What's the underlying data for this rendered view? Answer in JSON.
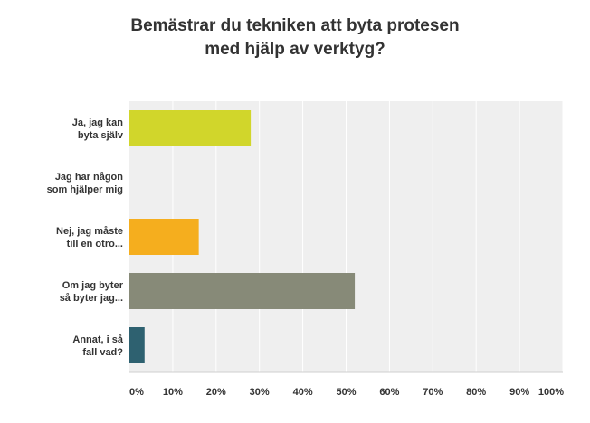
{
  "chart_data": {
    "type": "bar",
    "orientation": "horizontal",
    "title_lines": [
      "Bemästrar du tekniken att byta protesen",
      "med hjälp av verktyg?"
    ],
    "categories": [
      [
        "Ja, jag kan",
        "byta själv"
      ],
      [
        "Jag har någon",
        "som hjälper mig"
      ],
      [
        "Nej, jag måste",
        "till en otro..."
      ],
      [
        "Om jag byter",
        "så byter jag..."
      ],
      [
        "Annat, i så",
        "fall vad?"
      ]
    ],
    "values": [
      28,
      0,
      16,
      52,
      3.5
    ],
    "colors": [
      "#d1d62b",
      "#cccccc",
      "#f5ae1e",
      "#878a78",
      "#2e6170"
    ],
    "x_ticks": [
      "0%",
      "10%",
      "20%",
      "30%",
      "40%",
      "50%",
      "60%",
      "70%",
      "80%",
      "90%",
      "100%"
    ],
    "xlim": [
      0,
      100
    ],
    "grid": true,
    "legend": "none"
  }
}
